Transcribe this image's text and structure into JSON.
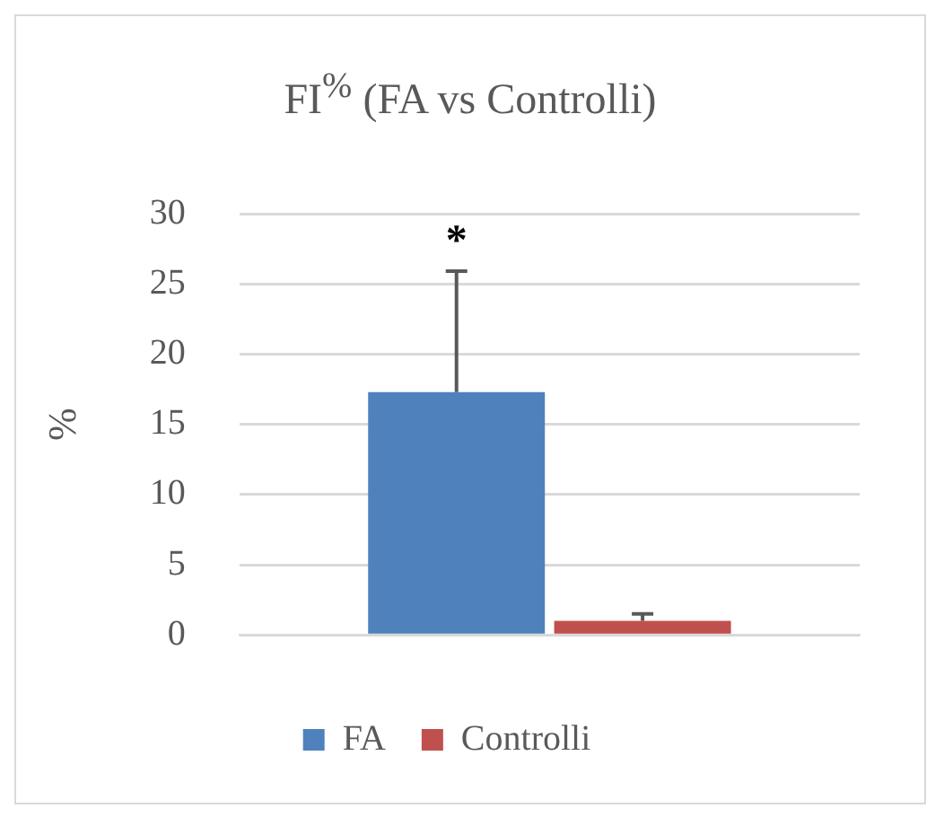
{
  "chart_data": {
    "type": "bar",
    "title": "FI$^{%}$ (FA vs Controlli)",
    "ylabel": "%",
    "categories": [
      null
    ],
    "series": [
      {
        "name": "FA",
        "color": "#4f81bd",
        "values": [
          17.3
        ],
        "errors": [
          [
            17.3,
            25.9
          ]
        ]
      },
      {
        "name": "Controlli",
        "color": "#c0504d",
        "values": [
          1.0
        ],
        "errors": [
          [
            1.0,
            1.5
          ]
        ]
      }
    ],
    "ylim": [
      0,
      30
    ],
    "yticks": [
      0,
      5,
      10,
      15,
      20,
      25,
      30
    ],
    "grid": "y",
    "legend": "bottom",
    "annotations": [
      "*"
    ]
  }
}
